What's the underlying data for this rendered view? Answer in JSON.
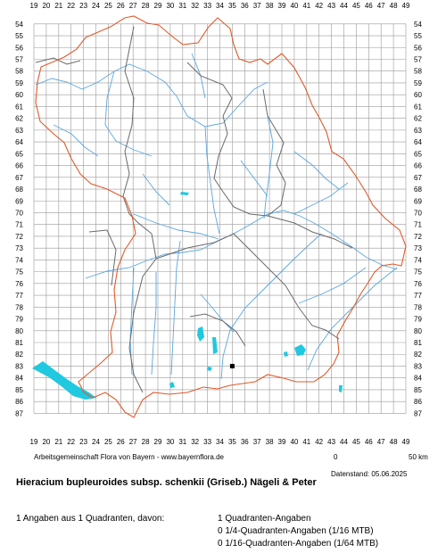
{
  "map": {
    "x_labels": [
      "19",
      "20",
      "21",
      "22",
      "23",
      "24",
      "25",
      "26",
      "27",
      "28",
      "29",
      "30",
      "31",
      "32",
      "33",
      "34",
      "35",
      "36",
      "37",
      "38",
      "39",
      "40",
      "41",
      "42",
      "43",
      "44",
      "45",
      "46",
      "47",
      "48",
      "49"
    ],
    "y_labels": [
      "54",
      "55",
      "56",
      "57",
      "58",
      "59",
      "60",
      "61",
      "62",
      "63",
      "64",
      "65",
      "66",
      "67",
      "68",
      "69",
      "70",
      "71",
      "72",
      "73",
      "74",
      "75",
      "76",
      "77",
      "78",
      "79",
      "80",
      "81",
      "82",
      "83",
      "84",
      "85",
      "86",
      "87"
    ],
    "occurrence": {
      "grid_x": "35",
      "grid_y": "83"
    },
    "colors": {
      "grid": "#9a9a9a",
      "border": "#e05a2a",
      "districts": "#6a6a6a",
      "rivers": "#5aa6e0",
      "lakes": "#20c8e0",
      "marker": "#000000"
    }
  },
  "texts": {
    "attribution": "Arbeitsgemeinschaft Flora von Bayern - www.bayernflora.de",
    "scale_left": "0",
    "scale_right": "50 km",
    "datestamp": "Datenstand: 05.06.2025",
    "taxon": "Hieracium bupleuroides subsp. schenkii (Griseb.) Nägeli & Peter",
    "summary": "1 Angaben aus 1 Quadranten, davon:",
    "q1": "1 Quadranten-Angaben",
    "q2": "0 1/4-Quadranten-Angaben (1/16 MTB)",
    "q3": "0 1/16-Quadranten-Angaben (1/64 MTB)"
  }
}
